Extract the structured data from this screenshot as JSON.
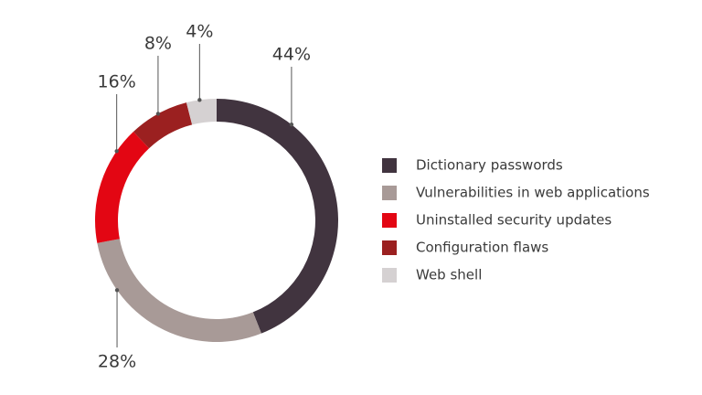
{
  "chart_data": {
    "type": "donut",
    "categories": [
      "Dictionary passwords",
      "Vulnerabilities in web applications",
      "Uninstalled security updates",
      "Configuration flaws",
      "Web shell"
    ],
    "values": [
      44,
      28,
      16,
      8,
      4
    ],
    "value_labels": [
      "44%",
      "28%",
      "16%",
      "8%",
      "4%"
    ],
    "colors": [
      "#41343f",
      "#a89a97",
      "#e30613",
      "#9b2020",
      "#d5d1d2"
    ]
  }
}
